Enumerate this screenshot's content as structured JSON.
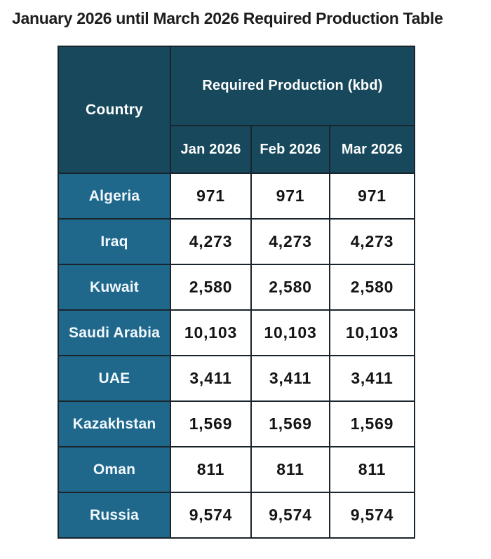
{
  "page": {
    "title": "January 2026 until March 2026 Required Production Table"
  },
  "colors": {
    "header_bg": "#17485C",
    "country_cell_bg": "#1F688C",
    "border": "#1A242C",
    "header_text": "#FFFFFF",
    "value_text": "#141414",
    "page_bg": "#FFFFFF"
  },
  "chart_data": {
    "type": "table",
    "title": "January 2026 until March 2026 Required Production Table",
    "column_group_header": "Required Production (kbd)",
    "columns": [
      "Country",
      "Jan 2026",
      "Feb 2026",
      "Mar 2026"
    ],
    "rows": [
      [
        "Algeria",
        "971",
        "971",
        "971"
      ],
      [
        "Iraq",
        "4,273",
        "4,273",
        "4,273"
      ],
      [
        "Kuwait",
        "2,580",
        "2,580",
        "2,580"
      ],
      [
        "Saudi Arabia",
        "10,103",
        "10,103",
        "10,103"
      ],
      [
        "UAE",
        "3,411",
        "3,411",
        "3,411"
      ],
      [
        "Kazakhstan",
        "1,569",
        "1,569",
        "1,569"
      ],
      [
        "Oman",
        "811",
        "811",
        "811"
      ],
      [
        "Russia",
        "9,574",
        "9,574",
        "9,574"
      ]
    ]
  }
}
